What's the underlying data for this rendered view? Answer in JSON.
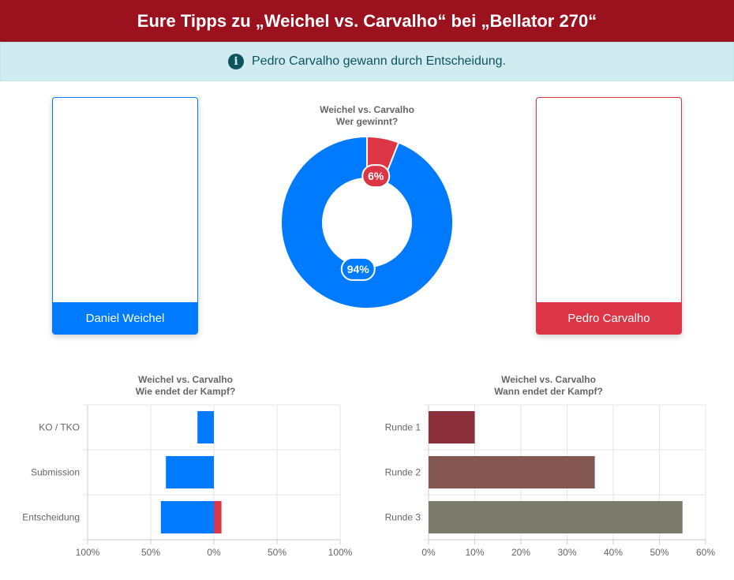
{
  "header": {
    "title": "Eure Tipps zu „Weichel vs. Carvalho“ bei „Bellator 270“"
  },
  "alert": {
    "icon": "info-icon",
    "text": "Pedro Carvalho gewann durch Entscheidung."
  },
  "fighters": {
    "left": {
      "name": "Daniel Weichel",
      "color": "#007bff"
    },
    "right": {
      "name": "Pedro Carvalho",
      "color": "#dc3545"
    }
  },
  "chart_data": [
    {
      "type": "pie",
      "title": [
        "Weichel vs. Carvalho",
        "Wer gewinnt?"
      ],
      "categories": [
        "Pedro Carvalho",
        "Daniel Weichel"
      ],
      "values": [
        6,
        94
      ],
      "labels": [
        "6%",
        "94%"
      ],
      "colors": [
        "#dc3545",
        "#007bff"
      ],
      "donut": true
    },
    {
      "type": "bar",
      "orientation": "horizontal",
      "stacked": true,
      "title": [
        "Weichel vs. Carvalho",
        "Wie endet der Kampf?"
      ],
      "categories": [
        "KO / TKO",
        "Submission",
        "Entscheidung"
      ],
      "series": [
        {
          "values": [
            -13,
            -38,
            -42
          ],
          "color": "#007bff"
        },
        {
          "values": [
            0,
            0,
            6
          ],
          "color": "#dc3545"
        }
      ],
      "xlim": [
        -100,
        100
      ],
      "xticks": [
        -100,
        -50,
        0,
        50,
        100
      ],
      "xtick_labels": [
        "100%",
        "50%",
        "0%",
        "50%",
        "100%"
      ],
      "grid": true
    },
    {
      "type": "bar",
      "orientation": "horizontal",
      "title": [
        "Weichel vs. Carvalho",
        "Wann endet der Kampf?"
      ],
      "categories": [
        "Runde 1",
        "Runde 2",
        "Runde 3"
      ],
      "values": [
        10,
        36,
        55
      ],
      "colors": [
        "#8b2f3a",
        "#845752",
        "#7b7b6c"
      ],
      "xlim": [
        0,
        60
      ],
      "xticks": [
        0,
        10,
        20,
        30,
        40,
        50,
        60
      ],
      "xtick_labels": [
        "0%",
        "10%",
        "20%",
        "30%",
        "40%",
        "50%",
        "60%"
      ],
      "grid": true
    }
  ]
}
